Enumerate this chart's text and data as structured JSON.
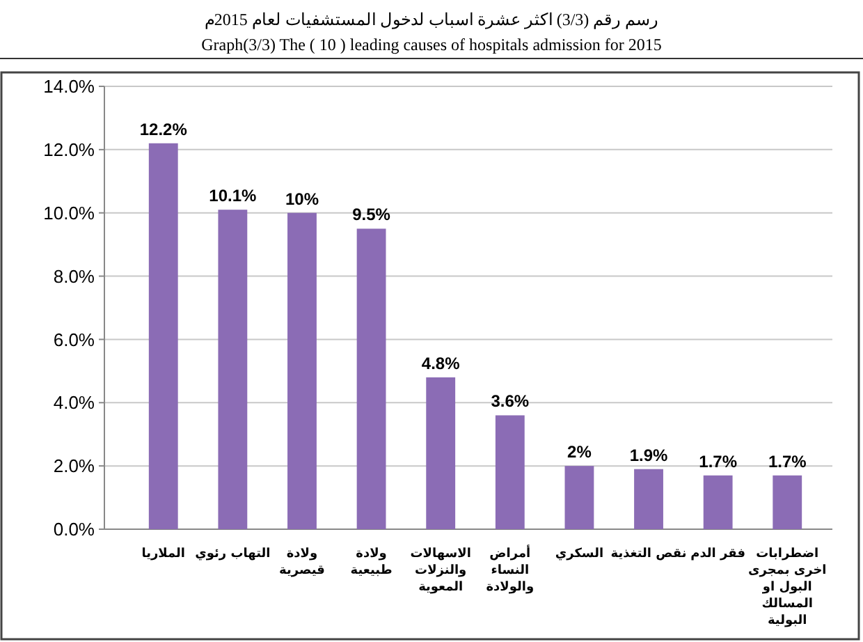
{
  "chart_data": {
    "type": "bar",
    "title": "رسم رقم (3/3) اكثر عشرة اسباب لدخول المستشفيات لعام 2015م",
    "subtitle": "Graph(3/3) The ( 10 ) leading causes of hospitals admission  for 2015",
    "categories": [
      "الملاريا",
      "التهاب رئوي",
      "ولادة قيصرية",
      "ولادة طبيعية",
      "الاسهالات والنزلات المعوية",
      "أمراض النساء والولادة",
      "السكري",
      "نقص التغذية",
      "فقر الدم",
      "اضطرابات اخرى بمجرى البول او المسالك البولية"
    ],
    "values": [
      12.2,
      10.1,
      10,
      9.5,
      4.8,
      3.6,
      2,
      1.9,
      1.7,
      1.7
    ],
    "value_labels": [
      "12.2%",
      "10.1%",
      "10%",
      "9.5%",
      "4.8%",
      "3.6%",
      "2%",
      "1.9%",
      "1.7%",
      "1.7%"
    ],
    "color": "#8b6cb5",
    "ylim": [
      0,
      14
    ],
    "yticks": [
      {
        "value": 0,
        "label": "0.0%"
      },
      {
        "value": 2,
        "label": "2.0%"
      },
      {
        "value": 4,
        "label": "4.0%"
      },
      {
        "value": 6,
        "label": "6.0%"
      },
      {
        "value": 8,
        "label": "8.0%"
      },
      {
        "value": 10,
        "label": "10.0%"
      },
      {
        "value": 12,
        "label": "12.0%"
      },
      {
        "value": 14,
        "label": "14.0%"
      }
    ],
    "grid": "y"
  }
}
